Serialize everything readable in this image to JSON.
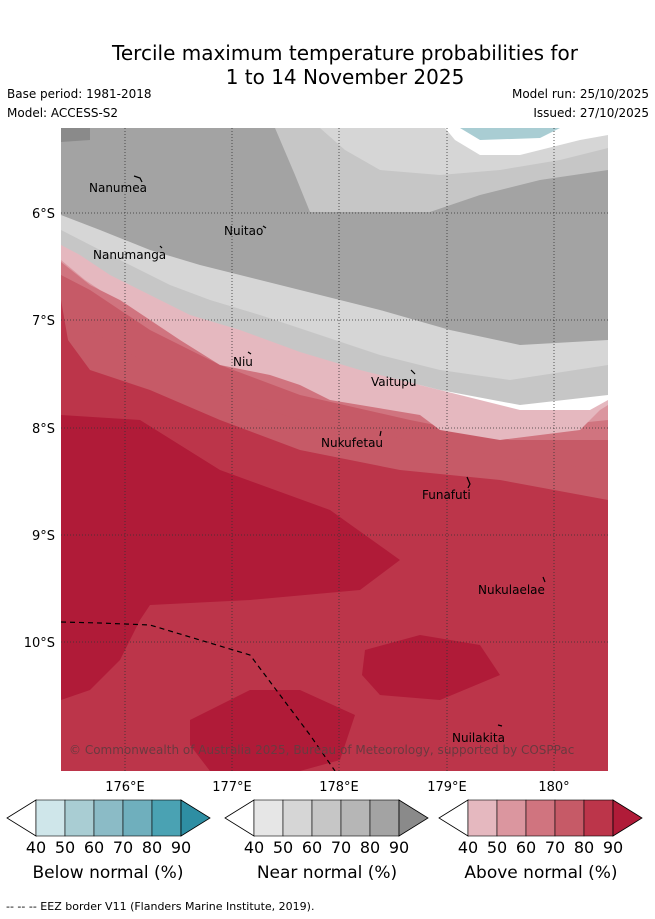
{
  "header": {
    "title_line1": "Tercile maximum temperature probabilities for",
    "title_line2": "1 to 14 November 2025",
    "base_period": "Base period: 1981-2018",
    "model": "Model: ACCESS-S2",
    "model_run": "Model run: 25/10/2025",
    "issued": "Issued: 27/10/2025"
  },
  "map": {
    "lat_labels": [
      "6°S",
      "7°S",
      "8°S",
      "9°S",
      "10°S"
    ],
    "lon_labels": [
      "176°E",
      "177°E",
      "178°E",
      "179°E",
      "180°"
    ],
    "islands": [
      "Nanumea",
      "Nuitao",
      "Nanumanga",
      "Niu",
      "Vaitupu",
      "Nukufetau",
      "Funafuti",
      "Nukulaelae",
      "Nuilakita"
    ],
    "copyright": "© Commonwealth of Australia 2025, Bureau of Meteorology, supported by COSPPac"
  },
  "colorbars": [
    {
      "label": "Below normal (%)",
      "ticks": [
        "40",
        "50",
        "60",
        "70",
        "80",
        "90"
      ],
      "colors": [
        "#cfe6ea",
        "#a9cdd3",
        "#8bbbc6",
        "#6fafbd",
        "#4aa2b3",
        "#2e8ea3"
      ]
    },
    {
      "label": "Near normal (%)",
      "ticks": [
        "40",
        "50",
        "60",
        "70",
        "80",
        "90"
      ],
      "colors": [
        "#e6e6e6",
        "#d6d6d6",
        "#c6c6c6",
        "#b6b6b6",
        "#a3a3a3",
        "#8a8a8a"
      ]
    },
    {
      "label": "Above normal (%)",
      "ticks": [
        "40",
        "50",
        "60",
        "70",
        "80",
        "90"
      ],
      "colors": [
        "#e5b8bf",
        "#db969f",
        "#d0747f",
        "#c65a67",
        "#bc354a",
        "#b01b38"
      ]
    }
  ],
  "footer": {
    "eez_note": "--  --  -- EEZ border V11 (Flanders Marine Institute, 2019)."
  }
}
